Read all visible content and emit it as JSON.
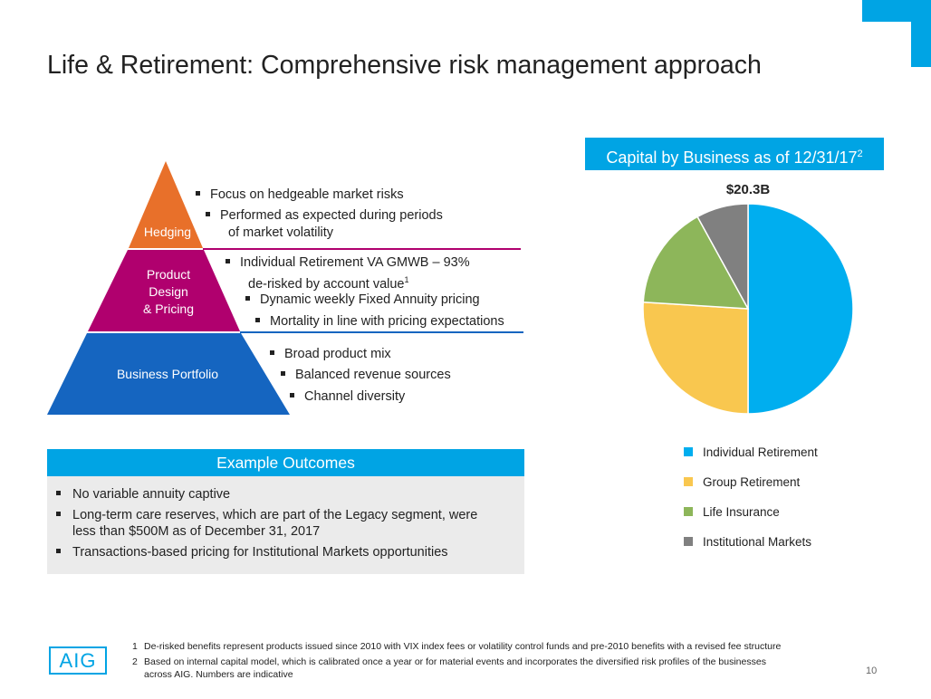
{
  "title": "Life & Retirement: Comprehensive risk management approach",
  "pyramid": {
    "top_label": "Hedging",
    "middle_label": [
      "Product",
      "Design",
      "& Pricing"
    ],
    "bottom_label": "Business Portfolio",
    "colors": {
      "top": "#e8702a",
      "middle": "#b0006e",
      "bottom": "#1565c0"
    }
  },
  "hedging_bullets": [
    "Focus on hedgeable market risks",
    "Performed as expected during periods",
    "of market volatility"
  ],
  "product_bullets": {
    "line1": "Individual Retirement VA GMWB – 93%",
    "line2": "de-risked by account value",
    "line2_sup": "1",
    "line3": "Dynamic weekly Fixed Annuity pricing",
    "line4": "Mortality in line with pricing expectations"
  },
  "portfolio_bullets": [
    "Broad product mix",
    "Balanced revenue sources",
    "Channel diversity"
  ],
  "capital_chart": {
    "header": "Capital by Business as of 12/31/17",
    "header_sup": "2",
    "total_label": "$20.3B"
  },
  "chart_data": {
    "type": "pie",
    "title": "Capital by Business as of 12/31/17",
    "total": "$20.3B",
    "categories": [
      "Individual Retirement",
      "Group Retirement",
      "Life Insurance",
      "Institutional Markets"
    ],
    "values": [
      50,
      26,
      16,
      8
    ],
    "colors": [
      "#00aeef",
      "#f9c74f",
      "#8db65a",
      "#808080"
    ],
    "legend_position": "bottom-right"
  },
  "outcomes": {
    "header": "Example Outcomes",
    "items": [
      "No variable annuity captive",
      "Long-term care reserves, which are part of the Legacy segment, were",
      "less than $500M as of December 31, 2017",
      "Transactions-based pricing for Institutional Markets opportunities"
    ]
  },
  "footnotes": {
    "n1": "1",
    "t1": "De-risked benefits represent products issued since 2010 with VIX index fees or volatility control funds and pre-2010 benefits with a revised fee structure",
    "n2": "2",
    "t2a": "Based on internal capital model, which is calibrated once a year or for material events and incorporates the diversified risk profiles of the businesses",
    "t2b": "across AIG. Numbers are indicative"
  },
  "logo_text": "AIG",
  "page_number": "10",
  "accent_color": "#00a4e4"
}
